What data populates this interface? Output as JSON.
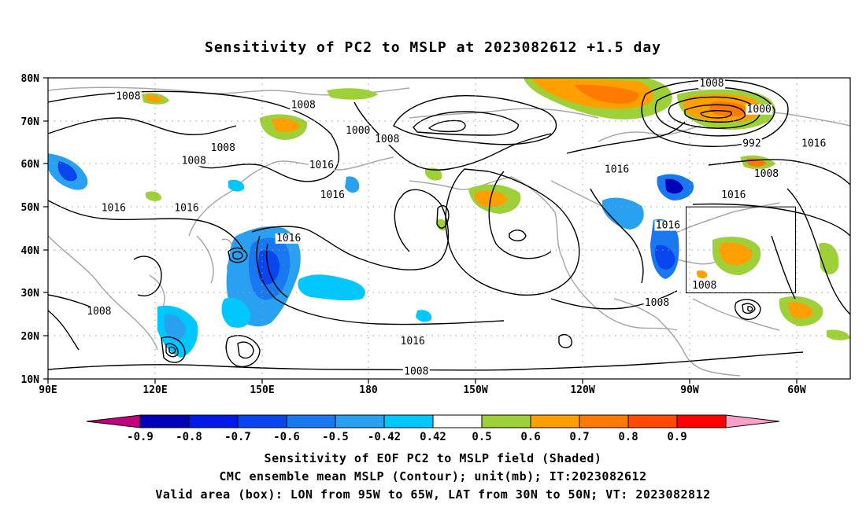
{
  "title": "Sensitivity of PC2 to MSLP at 2023082612 +1.5 day",
  "map": {
    "lat_labels": [
      "80N",
      "70N",
      "60N",
      "50N",
      "40N",
      "30N",
      "20N",
      "10N"
    ],
    "lon_labels": [
      "90E",
      "120E",
      "150E",
      "180",
      "150W",
      "120W",
      "90W",
      "60W"
    ],
    "contour_levels": [
      "1000",
      "992",
      "1008",
      "1016"
    ],
    "contour_labels": [
      {
        "text": "1008",
        "lon": 112,
        "lat": 75
      },
      {
        "text": "1008",
        "lon": 160,
        "lat": 73
      },
      {
        "text": "1000",
        "lon": 175,
        "lat": 67
      },
      {
        "text": "1008",
        "lon": 183,
        "lat": 65
      },
      {
        "text": "1008",
        "lon": 130,
        "lat": 60
      },
      {
        "text": "1008",
        "lon": 138,
        "lat": 63
      },
      {
        "text": "1016",
        "lon": 165,
        "lat": 59
      },
      {
        "text": "1016",
        "lon": 168,
        "lat": 52
      },
      {
        "text": "1016",
        "lon": 108,
        "lat": 49
      },
      {
        "text": "1016",
        "lon": 128,
        "lat": 49
      },
      {
        "text": "1016",
        "lon": 156,
        "lat": 42
      },
      {
        "text": "1016",
        "lon": 260,
        "lat": 45
      },
      {
        "text": "1016",
        "lon": 246,
        "lat": 58
      },
      {
        "text": "1016",
        "lon": 278,
        "lat": 52
      },
      {
        "text": "1008",
        "lon": 272,
        "lat": 78
      },
      {
        "text": "1000",
        "lon": 285,
        "lat": 72
      },
      {
        "text": "992",
        "lon": 283,
        "lat": 64
      },
      {
        "text": "1008",
        "lon": 287,
        "lat": 57
      },
      {
        "text": "1016",
        "lon": 300,
        "lat": 64
      },
      {
        "text": "1008",
        "lon": 270,
        "lat": 31
      },
      {
        "text": "1008",
        "lon": 257,
        "lat": 27
      },
      {
        "text": "1016",
        "lon": 190,
        "lat": 18
      },
      {
        "text": "1008",
        "lon": 104,
        "lat": 25
      },
      {
        "text": "1008",
        "lon": 191,
        "lat": 11
      }
    ],
    "valid_box": {
      "lon_w": -95,
      "lon_e": -65,
      "lat_s": 30,
      "lat_n": 50
    }
  },
  "colorbar": {
    "labels": [
      "-0.9",
      "-0.8",
      "-0.7",
      "-0.6",
      "-0.5",
      "-0.42",
      "0.42",
      "0.5",
      "0.6",
      "0.7",
      "0.8",
      "0.9"
    ],
    "colors": [
      "#c0007f",
      "#0000b8",
      "#0019e6",
      "#0a46f0",
      "#1978f0",
      "#2aa0f0",
      "#00c8ff",
      "#ffffff",
      "#9ed03a",
      "#ff9f00",
      "#ff7a00",
      "#ff4a00",
      "#ff0000",
      "#f8a0c8"
    ]
  },
  "captions": [
    "Sensitivity of EOF PC2 to MSLP field (Shaded)",
    "CMC ensemble mean MSLP (Contour); unit(mb); IT:2023082612",
    "Valid area (box): LON from 95W to 65W, LAT from 30N to 50N; VT: 2023082812"
  ]
}
